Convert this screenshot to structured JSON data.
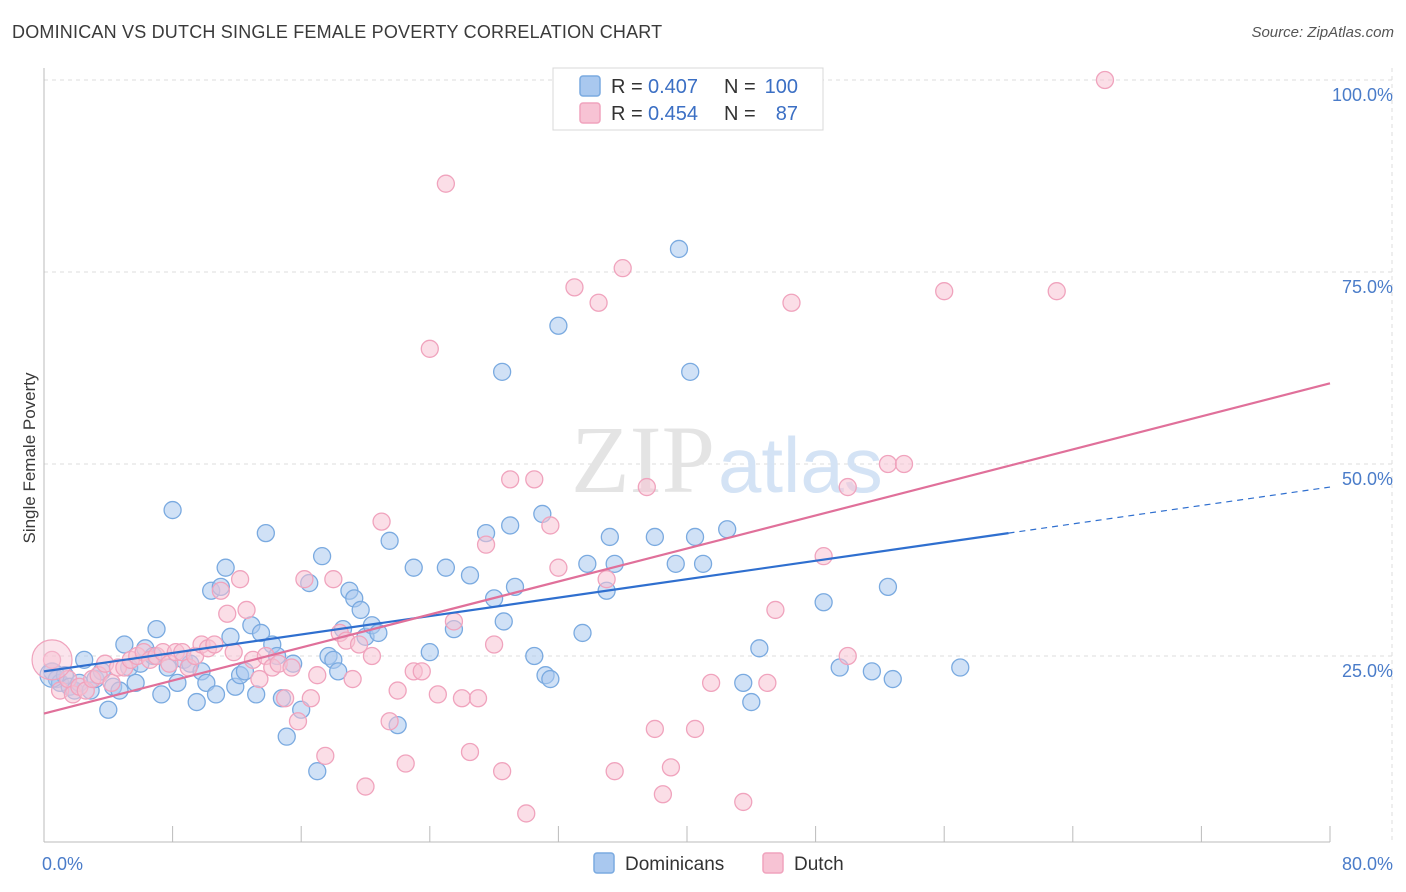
{
  "chart_data": {
    "type": "scatter",
    "title": "DOMINICAN VS DUTCH SINGLE FEMALE POVERTY CORRELATION CHART",
    "source": "Source: ZipAtlas.com",
    "ylabel": "Single Female Poverty",
    "xlabel": "",
    "xlim": [
      0,
      80
    ],
    "ylim": [
      0,
      102
    ],
    "x_tick_labels": [
      "0.0%",
      "80.0%"
    ],
    "y_ticks": [
      25,
      50,
      75,
      100
    ],
    "y_tick_labels": [
      "25.0%",
      "50.0%",
      "75.0%",
      "100.0%"
    ],
    "grid": true,
    "watermark": "ZIPatlas",
    "legend": {
      "position": "top-center",
      "entries": [
        {
          "series": "Dominicans",
          "r_label": "R =",
          "r_value": "0.407",
          "n_label": "N =",
          "n_value": "100"
        },
        {
          "series": "Dutch",
          "r_label": "R =",
          "r_value": "0.454",
          "n_label": "N =",
          "n_value": "87"
        }
      ]
    },
    "series": [
      {
        "name": "Dominicans",
        "color": "#7aaae0",
        "fill": "#a9c8ef",
        "line_color": "#2f6fcf",
        "trend": {
          "x0": 0,
          "y0": 23.0,
          "x1": 60,
          "y1": 41.0,
          "x_dash_end": 80,
          "y_dash_end": 47.0
        },
        "points": [
          [
            0.5,
            23.0
          ],
          [
            0.8,
            22.0
          ],
          [
            1.0,
            21.5
          ],
          [
            1.3,
            22.5
          ],
          [
            1.6,
            21.0
          ],
          [
            1.9,
            20.5
          ],
          [
            2.2,
            21.5
          ],
          [
            2.5,
            24.5
          ],
          [
            2.9,
            20.5
          ],
          [
            3.2,
            22.0
          ],
          [
            3.6,
            23.0
          ],
          [
            4.0,
            18.0
          ],
          [
            4.3,
            21.0
          ],
          [
            4.7,
            20.5
          ],
          [
            5.0,
            26.5
          ],
          [
            5.3,
            23.5
          ],
          [
            5.7,
            21.5
          ],
          [
            6.0,
            24.0
          ],
          [
            6.3,
            26.0
          ],
          [
            6.8,
            25.0
          ],
          [
            7.0,
            28.5
          ],
          [
            7.3,
            20.0
          ],
          [
            7.7,
            23.5
          ],
          [
            8.0,
            44.0
          ],
          [
            8.3,
            21.5
          ],
          [
            8.7,
            24.5
          ],
          [
            9.1,
            24.0
          ],
          [
            9.5,
            19.0
          ],
          [
            9.8,
            23.0
          ],
          [
            10.1,
            21.5
          ],
          [
            10.4,
            33.5
          ],
          [
            10.7,
            20.0
          ],
          [
            11.0,
            34.0
          ],
          [
            11.3,
            36.5
          ],
          [
            11.6,
            27.5
          ],
          [
            11.9,
            21.0
          ],
          [
            12.2,
            22.5
          ],
          [
            12.5,
            23.0
          ],
          [
            12.9,
            29.0
          ],
          [
            13.2,
            20.0
          ],
          [
            13.5,
            28.0
          ],
          [
            13.8,
            41.0
          ],
          [
            14.2,
            26.5
          ],
          [
            14.5,
            25.0
          ],
          [
            14.8,
            19.5
          ],
          [
            15.1,
            14.5
          ],
          [
            15.5,
            24.0
          ],
          [
            16.0,
            18.0
          ],
          [
            16.5,
            34.5
          ],
          [
            17.0,
            10.0
          ],
          [
            17.3,
            38.0
          ],
          [
            17.7,
            25.0
          ],
          [
            18.0,
            24.5
          ],
          [
            18.3,
            23.0
          ],
          [
            18.6,
            28.5
          ],
          [
            19.0,
            33.5
          ],
          [
            19.3,
            32.5
          ],
          [
            19.7,
            31.0
          ],
          [
            20.0,
            27.5
          ],
          [
            20.4,
            29.0
          ],
          [
            20.8,
            28.0
          ],
          [
            21.5,
            40.0
          ],
          [
            22.0,
            16.0
          ],
          [
            23.0,
            36.5
          ],
          [
            24.0,
            25.5
          ],
          [
            25.0,
            36.5
          ],
          [
            25.5,
            28.5
          ],
          [
            26.5,
            35.5
          ],
          [
            27.5,
            41.0
          ],
          [
            28.0,
            32.5
          ],
          [
            28.5,
            62.0
          ],
          [
            29.0,
            42.0
          ],
          [
            29.3,
            34.0
          ],
          [
            30.5,
            25.0
          ],
          [
            31.0,
            43.5
          ],
          [
            31.2,
            22.5
          ],
          [
            31.5,
            22.0
          ],
          [
            32.0,
            68.0
          ],
          [
            33.5,
            28.0
          ],
          [
            33.8,
            37.0
          ],
          [
            35.0,
            33.5
          ],
          [
            35.2,
            40.5
          ],
          [
            35.5,
            37.0
          ],
          [
            38.0,
            40.5
          ],
          [
            39.3,
            37.0
          ],
          [
            39.5,
            78.0
          ],
          [
            40.2,
            62.0
          ],
          [
            40.5,
            40.5
          ],
          [
            41.0,
            37.0
          ],
          [
            42.5,
            41.5
          ],
          [
            43.5,
            21.5
          ],
          [
            44.0,
            19.0
          ],
          [
            44.5,
            26.0
          ],
          [
            48.5,
            32.0
          ],
          [
            49.5,
            23.5
          ],
          [
            51.5,
            23.0
          ],
          [
            52.5,
            34.0
          ],
          [
            52.8,
            22.0
          ],
          [
            57.0,
            23.5
          ],
          [
            28.6,
            29.5
          ]
        ]
      },
      {
        "name": "Dutch",
        "color": "#f0a3bd",
        "fill": "#f7c3d4",
        "line_color": "#e0709a",
        "trend": {
          "x0": 0,
          "y0": 17.5,
          "x1": 80,
          "y1": 60.5
        },
        "points": [
          [
            0.5,
            24.5
          ],
          [
            1.0,
            20.5
          ],
          [
            1.5,
            22.0
          ],
          [
            1.8,
            20.0
          ],
          [
            2.2,
            21.0
          ],
          [
            2.6,
            20.5
          ],
          [
            3.0,
            22.0
          ],
          [
            3.4,
            22.5
          ],
          [
            3.8,
            24.0
          ],
          [
            4.2,
            21.5
          ],
          [
            4.6,
            23.5
          ],
          [
            5.0,
            23.5
          ],
          [
            5.4,
            24.5
          ],
          [
            5.8,
            25.0
          ],
          [
            6.2,
            25.5
          ],
          [
            6.6,
            24.5
          ],
          [
            7.0,
            25.0
          ],
          [
            7.4,
            25.5
          ],
          [
            7.8,
            24.0
          ],
          [
            8.2,
            25.5
          ],
          [
            8.6,
            25.5
          ],
          [
            9.0,
            23.5
          ],
          [
            9.4,
            25.0
          ],
          [
            9.8,
            26.5
          ],
          [
            10.2,
            26.0
          ],
          [
            10.6,
            26.5
          ],
          [
            11.0,
            33.5
          ],
          [
            11.4,
            30.5
          ],
          [
            11.8,
            25.5
          ],
          [
            12.2,
            35.0
          ],
          [
            12.6,
            31.0
          ],
          [
            13.0,
            24.5
          ],
          [
            13.4,
            22.0
          ],
          [
            13.8,
            25.0
          ],
          [
            14.2,
            23.5
          ],
          [
            14.6,
            24.0
          ],
          [
            15.0,
            19.5
          ],
          [
            15.4,
            23.5
          ],
          [
            15.8,
            16.5
          ],
          [
            16.2,
            35.0
          ],
          [
            16.6,
            19.5
          ],
          [
            17.0,
            22.5
          ],
          [
            17.5,
            12.0
          ],
          [
            18.0,
            35.0
          ],
          [
            18.4,
            28.0
          ],
          [
            18.8,
            27.0
          ],
          [
            19.2,
            22.0
          ],
          [
            19.6,
            26.5
          ],
          [
            20.0,
            8.0
          ],
          [
            20.4,
            25.0
          ],
          [
            21.0,
            42.5
          ],
          [
            21.5,
            16.5
          ],
          [
            22.0,
            20.5
          ],
          [
            22.5,
            11.0
          ],
          [
            23.0,
            23.0
          ],
          [
            23.5,
            23.0
          ],
          [
            24.0,
            65.0
          ],
          [
            24.5,
            20.0
          ],
          [
            25.0,
            86.5
          ],
          [
            25.5,
            29.5
          ],
          [
            26.0,
            19.5
          ],
          [
            26.5,
            12.5
          ],
          [
            27.0,
            19.5
          ],
          [
            27.5,
            39.5
          ],
          [
            28.0,
            26.5
          ],
          [
            28.5,
            10.0
          ],
          [
            29.0,
            48.0
          ],
          [
            30.0,
            4.5
          ],
          [
            30.5,
            48.0
          ],
          [
            31.5,
            42.0
          ],
          [
            32.0,
            36.5
          ],
          [
            33.0,
            73.0
          ],
          [
            34.5,
            71.0
          ],
          [
            35.0,
            35.0
          ],
          [
            35.5,
            10.0
          ],
          [
            36.0,
            75.5
          ],
          [
            37.5,
            47.0
          ],
          [
            38.0,
            15.5
          ],
          [
            38.5,
            7.0
          ],
          [
            39.0,
            10.5
          ],
          [
            40.5,
            15.5
          ],
          [
            41.5,
            21.5
          ],
          [
            43.5,
            6.0
          ],
          [
            45.0,
            21.5
          ],
          [
            45.5,
            31.0
          ],
          [
            46.5,
            71.0
          ],
          [
            48.5,
            38.0
          ]
        ],
        "extra_points": [
          [
            50.0,
            25.0
          ],
          [
            52.5,
            50.0
          ],
          [
            53.5,
            50.0
          ],
          [
            56.0,
            72.5
          ],
          [
            63.0,
            72.5
          ],
          [
            66.0,
            100.0
          ],
          [
            50.0,
            47.0
          ]
        ]
      }
    ]
  },
  "bottom_legend": {
    "entries": [
      {
        "label": "Dominicans"
      },
      {
        "label": "Dutch"
      }
    ]
  }
}
